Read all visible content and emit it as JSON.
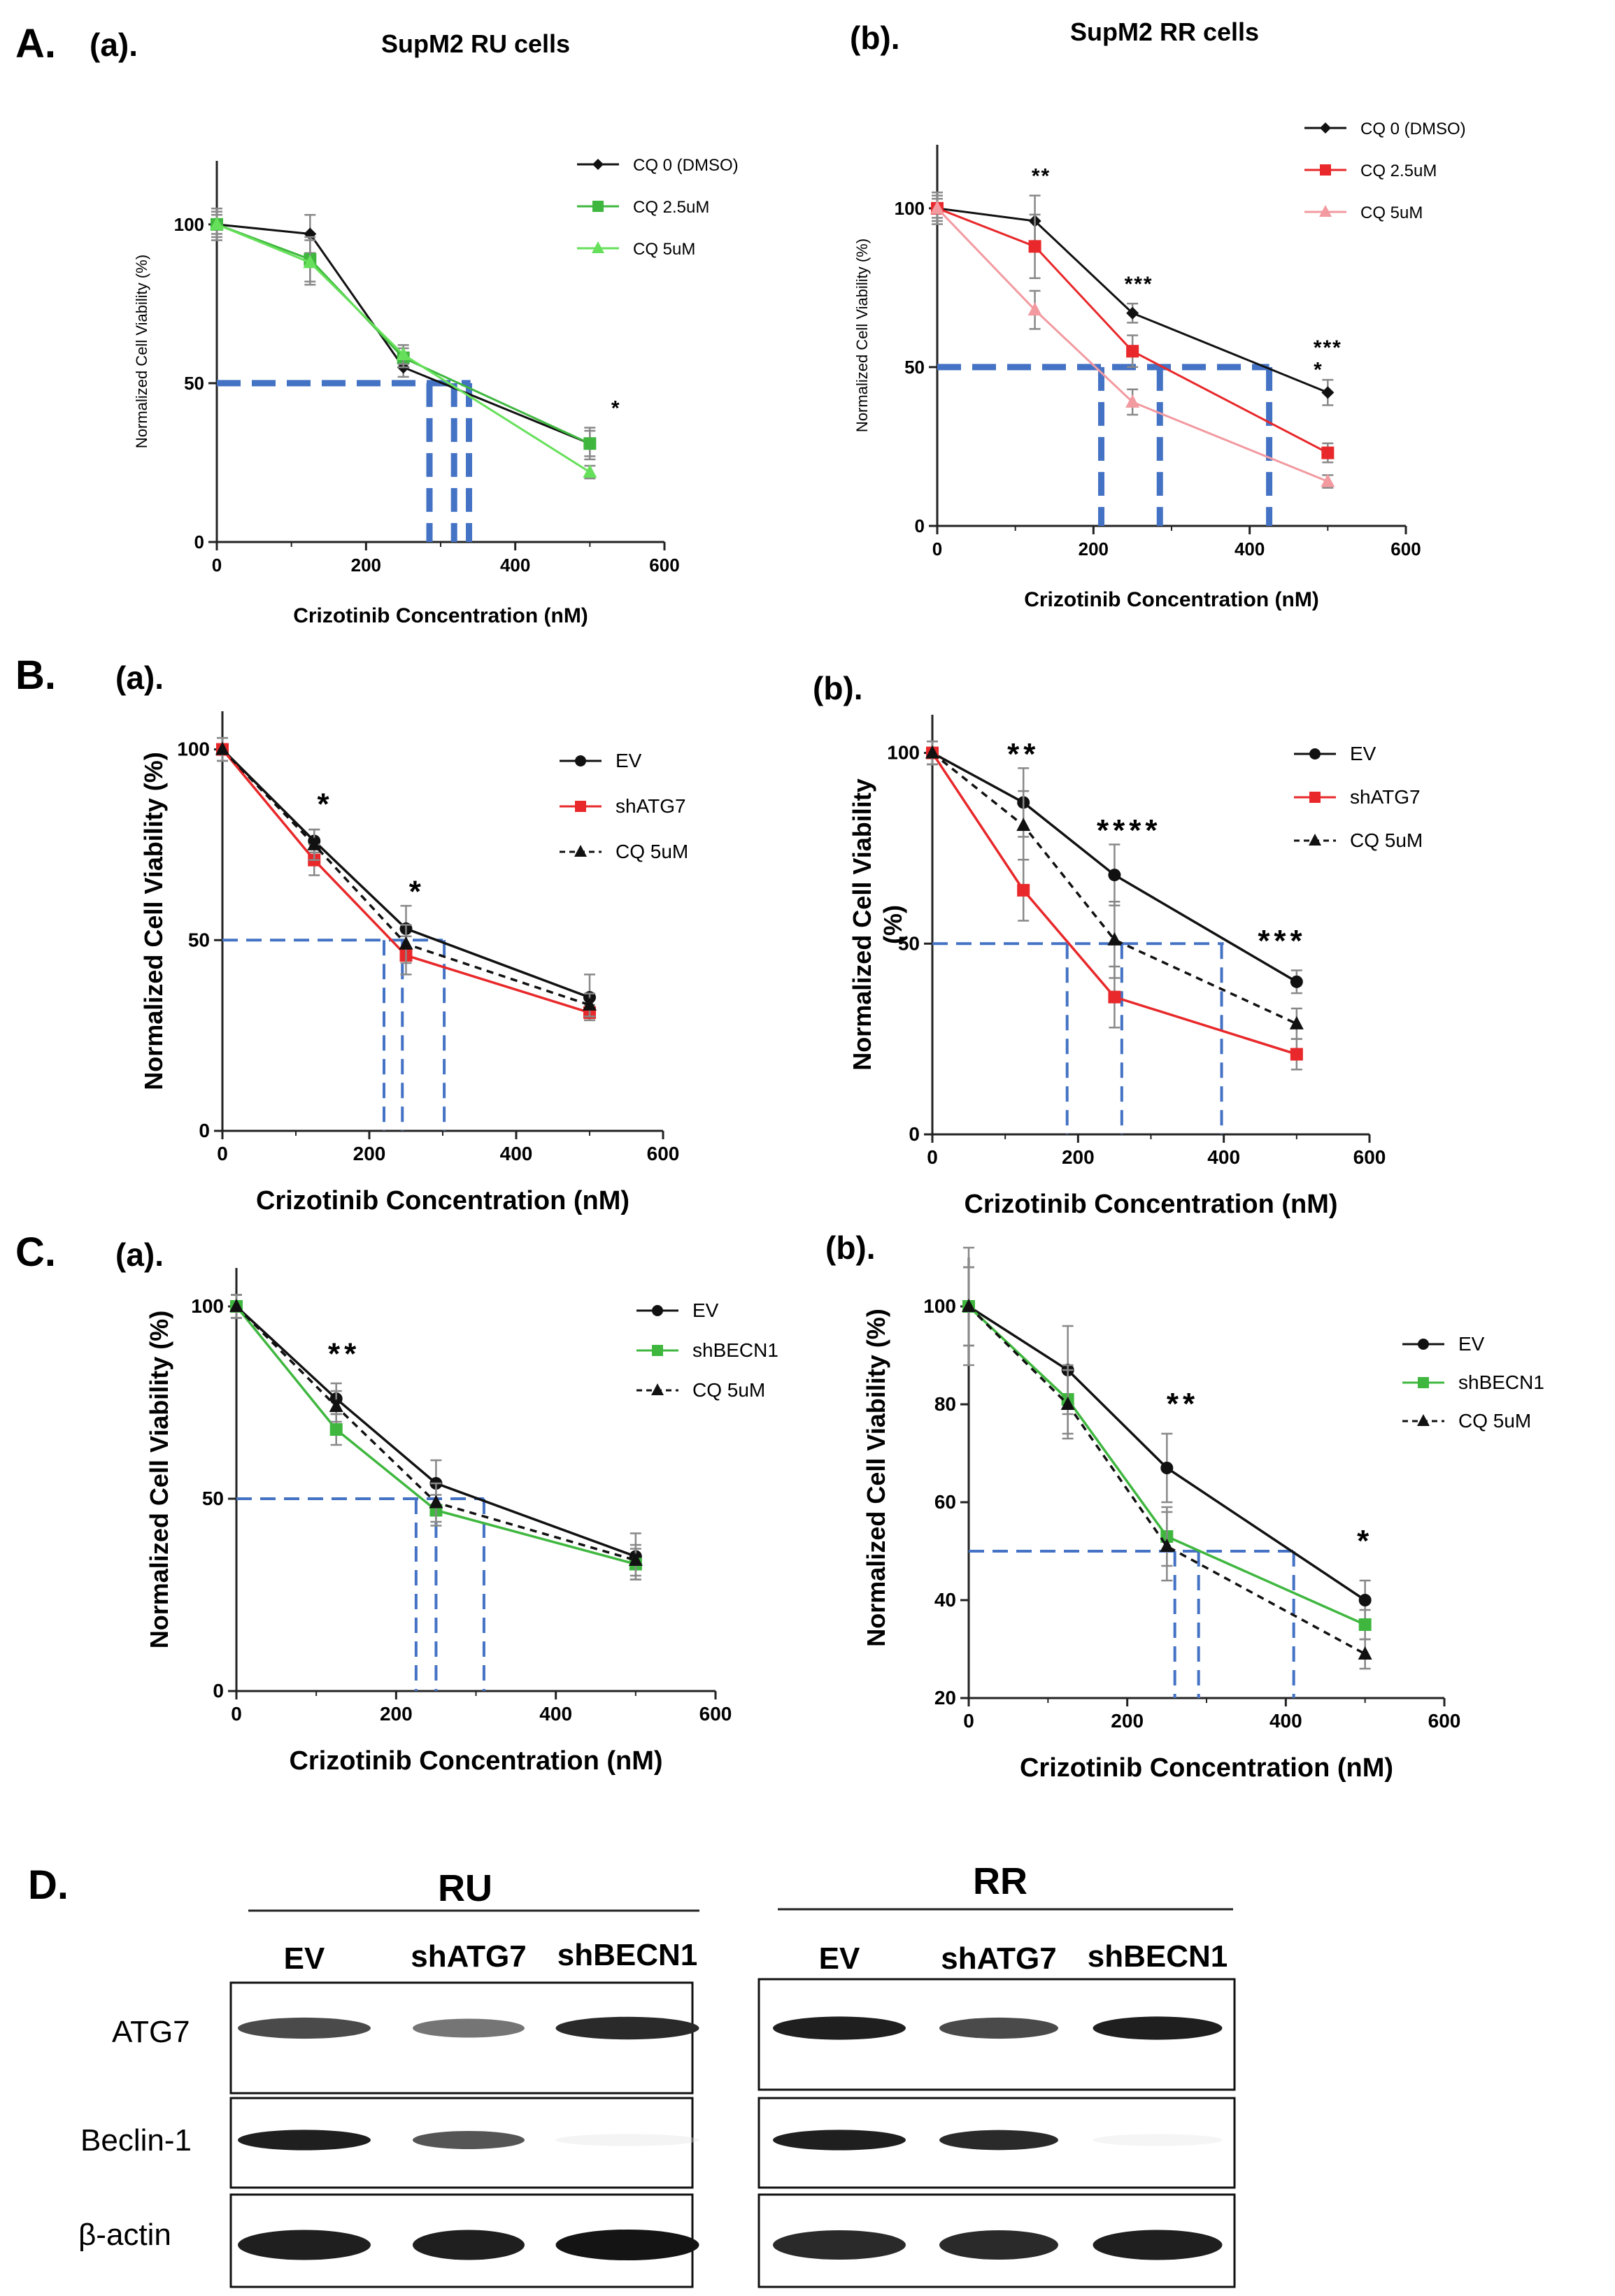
{
  "figure": {
    "panel_letters": {
      "A": "A.",
      "B": "B.",
      "C": "C.",
      "D": "D."
    },
    "colors": {
      "black": "#111111",
      "red": "#e8282a",
      "pink": "#f29aa0",
      "green": "#3fb73f",
      "lightgreen": "#66e05a",
      "dashed": "#4472c4",
      "error": "#888888"
    }
  },
  "chart_data": [
    {
      "id": "A_a",
      "type": "line",
      "panel_label": "(a).",
      "title": "SupM2 RU cells",
      "xlabel": "Crizotinib Concentration (nM)",
      "ylabel": "Normalized Cell Viability (%)",
      "xlim": [
        0,
        600
      ],
      "ylim": [
        0,
        120
      ],
      "xticks": [
        0,
        200,
        400,
        600
      ],
      "yticks": [
        0,
        50,
        100
      ],
      "x": [
        0,
        125,
        250,
        500
      ],
      "series": [
        {
          "name": "CQ 0 (DMSO)",
          "color": "#111111",
          "marker": "diamond",
          "dash": false,
          "values": [
            100,
            97,
            55,
            31
          ],
          "err": [
            5,
            6,
            3,
            5
          ]
        },
        {
          "name": "CQ 2.5uM",
          "color": "#3fb73f",
          "marker": "square",
          "dash": false,
          "values": [
            100,
            89,
            58,
            31
          ],
          "err": [
            4,
            7,
            3,
            4
          ]
        },
        {
          "name": "CQ 5uM",
          "color": "#66e05a",
          "marker": "triangle",
          "dash": false,
          "values": [
            100,
            88,
            59,
            22
          ],
          "err": [
            3,
            7,
            3,
            2
          ]
        }
      ],
      "annotations": [
        {
          "text": "*",
          "x": 535,
          "y": 40
        }
      ],
      "ic50_line": {
        "y": 50,
        "x_from": 0,
        "x_to": 340,
        "drops": [
          285,
          318,
          338
        ],
        "style": "heavy"
      },
      "legend_style": "small"
    },
    {
      "id": "A_b",
      "type": "line",
      "panel_label": "(b).",
      "title": "SupM2 RR cells",
      "xlabel": "Crizotinib Concentration (nM)",
      "ylabel": "Normalized Cell Viability (%)",
      "xlim": [
        0,
        600
      ],
      "ylim": [
        0,
        120
      ],
      "xticks": [
        0,
        200,
        400,
        600
      ],
      "yticks": [
        0,
        50,
        100
      ],
      "x": [
        0,
        125,
        250,
        500
      ],
      "series": [
        {
          "name": "CQ 0 (DMSO)",
          "color": "#111111",
          "marker": "diamond",
          "dash": false,
          "values": [
            100,
            96,
            67,
            42
          ],
          "err": [
            5,
            8,
            3,
            4
          ]
        },
        {
          "name": "CQ 2.5uM",
          "color": "#e8282a",
          "marker": "square",
          "dash": false,
          "values": [
            100,
            88,
            55,
            23
          ],
          "err": [
            4,
            10,
            5,
            3
          ]
        },
        {
          "name": "CQ 5uM",
          "color": "#f29aa0",
          "marker": "triangle",
          "dash": false,
          "values": [
            100,
            68,
            39,
            14
          ],
          "err": [
            3,
            6,
            4,
            2
          ]
        }
      ],
      "annotations": [
        {
          "text": "**",
          "x": 133,
          "y": 108
        },
        {
          "text": "***",
          "x": 258,
          "y": 74
        },
        {
          "text": "***",
          "x": 500,
          "y": 54
        },
        {
          "text": "*",
          "x": 488,
          "y": 47
        }
      ],
      "ic50_line": {
        "y": 50,
        "x_from": 0,
        "x_to": 425,
        "drops": [
          210,
          285,
          425
        ],
        "style": "heavy"
      },
      "legend_style": "small"
    },
    {
      "id": "B_a",
      "type": "line",
      "panel_label": "(a).",
      "title": "",
      "xlabel": "Crizotinib Concentration (nM)",
      "ylabel": "Normalized Cell Viability (%)",
      "xlim": [
        0,
        600
      ],
      "ylim": [
        0,
        110
      ],
      "xticks": [
        0,
        200,
        400,
        600
      ],
      "yticks": [
        0,
        50,
        100
      ],
      "x": [
        0,
        125,
        250,
        500
      ],
      "series": [
        {
          "name": "EV",
          "color": "#111111",
          "marker": "circle",
          "dash": false,
          "values": [
            100,
            76,
            53,
            35
          ],
          "err": [
            3,
            3,
            6,
            6
          ]
        },
        {
          "name": "shATG7",
          "color": "#e8282a",
          "marker": "square",
          "dash": false,
          "values": [
            100,
            71,
            46,
            31
          ],
          "err": [
            3,
            4,
            5,
            2
          ]
        },
        {
          "name": "CQ 5uM",
          "color": "#111111",
          "marker": "triangle",
          "dash": true,
          "values": [
            100,
            75,
            49,
            33
          ],
          "err": [
            3,
            4,
            5,
            3
          ]
        }
      ],
      "annotations": [
        {
          "text": "*",
          "x": 140,
          "y": 83
        },
        {
          "text": "*",
          "x": 265,
          "y": 60
        }
      ],
      "ic50_line": {
        "y": 50,
        "x_from": 0,
        "x_to": 300,
        "drops": [
          220,
          245,
          302
        ],
        "style": "thin"
      },
      "legend_style": "big"
    },
    {
      "id": "B_b",
      "type": "line",
      "panel_label": "(b).",
      "title": "",
      "xlabel": "Crizotinib Concentration (nM)",
      "ylabel": "Normalized Cell Viability (%)",
      "xlim": [
        0,
        600
      ],
      "ylim": [
        0,
        110
      ],
      "xticks": [
        0,
        200,
        400,
        600
      ],
      "yticks": [
        0,
        50,
        100
      ],
      "x": [
        0,
        125,
        250,
        500
      ],
      "series": [
        {
          "name": "EV",
          "color": "#111111",
          "marker": "circle",
          "dash": false,
          "values": [
            100,
            87,
            68,
            40
          ],
          "err": [
            3,
            9,
            8,
            3
          ]
        },
        {
          "name": "shATG7",
          "color": "#e8282a",
          "marker": "square",
          "dash": false,
          "values": [
            100,
            64,
            36,
            21
          ],
          "err": [
            3,
            8,
            8,
            4
          ]
        },
        {
          "name": "CQ 5uM",
          "color": "#111111",
          "marker": "triangle",
          "dash": true,
          "values": [
            100,
            81,
            51,
            29
          ],
          "err": [
            3,
            9,
            10,
            4
          ]
        }
      ],
      "annotations": [
        {
          "text": "**",
          "x": 125,
          "y": 97
        },
        {
          "text": "****",
          "x": 270,
          "y": 77
        },
        {
          "text": "***",
          "x": 480,
          "y": 48
        }
      ],
      "ic50_line": {
        "y": 50,
        "x_from": 0,
        "x_to": 400,
        "drops": [
          185,
          260,
          397
        ],
        "style": "thin"
      },
      "legend_style": "big"
    },
    {
      "id": "C_a",
      "type": "line",
      "panel_label": "(a).",
      "title": "",
      "xlabel": "Crizotinib Concentration (nM)",
      "ylabel": "Normalized Cell Viability (%)",
      "xlim": [
        0,
        600
      ],
      "ylim": [
        0,
        110
      ],
      "xticks": [
        0,
        200,
        400,
        600
      ],
      "yticks": [
        0,
        50,
        100
      ],
      "x": [
        0,
        125,
        250,
        500
      ],
      "series": [
        {
          "name": "EV",
          "color": "#111111",
          "marker": "circle",
          "dash": false,
          "values": [
            100,
            76,
            54,
            35
          ],
          "err": [
            3,
            4,
            6,
            6
          ]
        },
        {
          "name": "shBECN1",
          "color": "#3fb73f",
          "marker": "square",
          "dash": false,
          "values": [
            100,
            68,
            47,
            33
          ],
          "err": [
            3,
            4,
            4,
            4
          ]
        },
        {
          "name": "CQ 5uM",
          "color": "#111111",
          "marker": "triangle",
          "dash": true,
          "values": [
            100,
            74,
            49,
            34
          ],
          "err": [
            3,
            4,
            5,
            4
          ]
        }
      ],
      "annotations": [
        {
          "text": "**",
          "x": 135,
          "y": 85
        }
      ],
      "ic50_line": {
        "y": 50,
        "x_from": 0,
        "x_to": 310,
        "drops": [
          225,
          250,
          310
        ],
        "style": "thin"
      },
      "legend_style": "big"
    },
    {
      "id": "C_b",
      "type": "line",
      "panel_label": "(b).",
      "title": "",
      "xlabel": "Crizotinib Concentration (nM)",
      "ylabel": "Normalized Cell Viability (%)",
      "xlim": [
        0,
        600
      ],
      "ylim": [
        20,
        110
      ],
      "xticks": [
        0,
        200,
        400,
        600
      ],
      "yticks": [
        20,
        40,
        60,
        80,
        100
      ],
      "x": [
        0,
        125,
        250,
        500
      ],
      "series": [
        {
          "name": "EV",
          "color": "#111111",
          "marker": "circle",
          "dash": false,
          "values": [
            100,
            87,
            67,
            40
          ],
          "err": [
            12,
            9,
            7,
            4
          ]
        },
        {
          "name": "shBECN1",
          "color": "#3fb73f",
          "marker": "square",
          "dash": false,
          "values": [
            100,
            81,
            53,
            35
          ],
          "err": [
            8,
            7,
            6,
            3
          ]
        },
        {
          "name": "CQ 5uM",
          "color": "#111111",
          "marker": "triangle",
          "dash": true,
          "values": [
            100,
            80,
            51,
            29
          ],
          "err": [
            8,
            7,
            7,
            3
          ]
        }
      ],
      "annotations": [
        {
          "text": "**",
          "x": 270,
          "y": 78
        },
        {
          "text": "*",
          "x": 500,
          "y": 50
        }
      ],
      "ic50_line": {
        "y": 50,
        "x_from": 0,
        "x_to": 410,
        "drops": [
          260,
          290,
          410
        ],
        "style": "thin"
      },
      "legend_style": "big"
    }
  ],
  "western": {
    "groups": [
      {
        "title": "RU",
        "lanes": [
          "EV",
          "shATG7",
          "shBECN1"
        ]
      },
      {
        "title": "RR",
        "lanes": [
          "EV",
          "shATG7",
          "shBECN1"
        ]
      }
    ],
    "proteins": [
      "ATG7",
      "Beclin-1",
      "β-actin"
    ],
    "band_intensity": {
      "RU": {
        "ATG7": [
          0.75,
          0.55,
          0.9
        ],
        "Beclin-1": [
          0.95,
          0.7,
          0.05
        ],
        "β-actin": [
          0.95,
          0.95,
          1.0
        ]
      },
      "RR": {
        "ATG7": [
          0.95,
          0.75,
          0.95
        ],
        "Beclin-1": [
          0.95,
          0.9,
          0.04
        ],
        "β-actin": [
          0.9,
          0.9,
          0.95
        ]
      }
    }
  }
}
